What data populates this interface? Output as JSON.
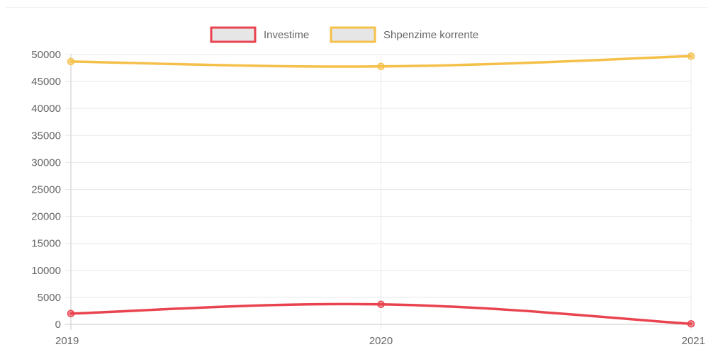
{
  "chart_data": {
    "type": "line",
    "categories": [
      "2019",
      "2020",
      "2021"
    ],
    "series": [
      {
        "name": "Investime",
        "values": [
          2000,
          3700,
          100
        ],
        "color": "#e8434f"
      },
      {
        "name": "Shpenzime korrente",
        "values": [
          48700,
          47800,
          49700
        ],
        "color": "#f5c04a"
      }
    ],
    "ylim": [
      0,
      50000
    ],
    "yticks": [
      "0",
      "5000",
      "10000",
      "15000",
      "20000",
      "25000",
      "30000",
      "35000",
      "40000",
      "45000",
      "50000"
    ],
    "legend_position": "top-center",
    "legend_swatch_fill": "#e6e6e6",
    "grid": true,
    "grid_color": "#e8e8e8",
    "axis_color": "#c8c8c8",
    "smooth": true
  }
}
